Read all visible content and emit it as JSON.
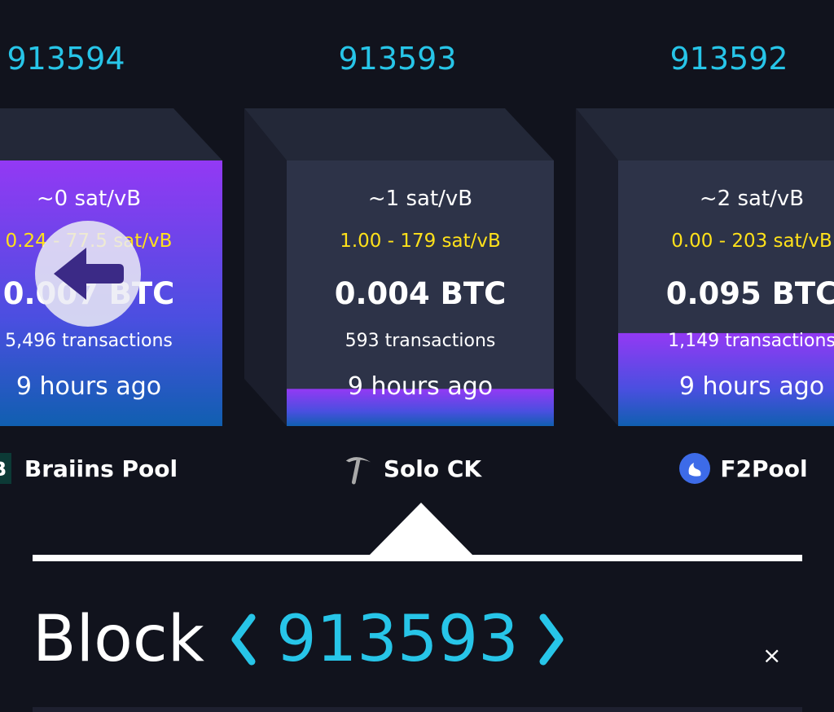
{
  "colors": {
    "accent": "#27c5e8",
    "range": "#ffe11a",
    "fill_top": "#9339f4",
    "fill_bottom": "#105fb0",
    "face": "#2d3348",
    "top": "#232838",
    "side": "#1b1e2c",
    "background": "#11131d"
  },
  "blocks": [
    {
      "height": "913594",
      "median_fee": "~0 sat/vB",
      "fee_range": "0.24 - 77.5 sat/vB",
      "reward": "0.007 BTC",
      "transactions": "5,496 transactions",
      "time": "9 hours ago",
      "pool": "Braiins Pool",
      "pool_icon": "braiins-logo",
      "fill": 1.0
    },
    {
      "height": "913593",
      "median_fee": "~1 sat/vB",
      "fee_range": "1.00 - 179 sat/vB",
      "reward": "0.004 BTC",
      "transactions": "593 transactions",
      "time": "9 hours ago",
      "pool": "Solo CK",
      "pool_icon": "pickaxe-icon",
      "fill": 0.14
    },
    {
      "height": "913592",
      "median_fee": "~2 sat/vB",
      "fee_range": "0.00 - 203 sat/vB",
      "reward": "0.095 BTC",
      "transactions": "1,149 transactions",
      "time": "9 hours ago",
      "pool": "F2Pool",
      "pool_icon": "f2pool-fish-logo",
      "fill": 0.35
    }
  ],
  "overlay": {
    "back_icon": "arrow-left-icon"
  },
  "detail": {
    "label": "Block",
    "height": "913593",
    "prev_icon": "chevron-left",
    "next_icon": "chevron-right",
    "close": "×"
  }
}
